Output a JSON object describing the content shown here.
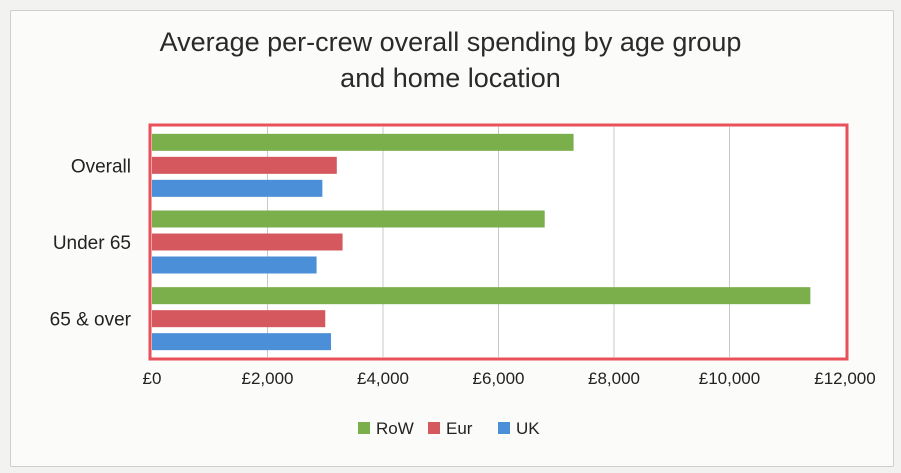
{
  "chart_data": {
    "type": "bar",
    "orientation": "horizontal",
    "title_lines": [
      "Average per-crew overall spending by age group",
      "and home location"
    ],
    "categories": [
      "Overall",
      "Under 65",
      "65 & over"
    ],
    "series": [
      {
        "name": "RoW",
        "color": "#7aaf4b",
        "values": [
          7300,
          6800,
          11400
        ]
      },
      {
        "name": "Eur",
        "color": "#d4585e",
        "values": [
          3200,
          3300,
          3000
        ]
      },
      {
        "name": "UK",
        "color": "#4b8fd8",
        "values": [
          2950,
          2850,
          3100
        ]
      }
    ],
    "x_ticks": [
      "£0",
      "£2,000",
      "£4,000",
      "£6,000",
      "£8,000",
      "£10,000",
      "£12,000"
    ],
    "xlim": [
      0,
      12000
    ],
    "grid": true,
    "legend_position": "bottom",
    "highlight_box_color": "#e8505a"
  }
}
